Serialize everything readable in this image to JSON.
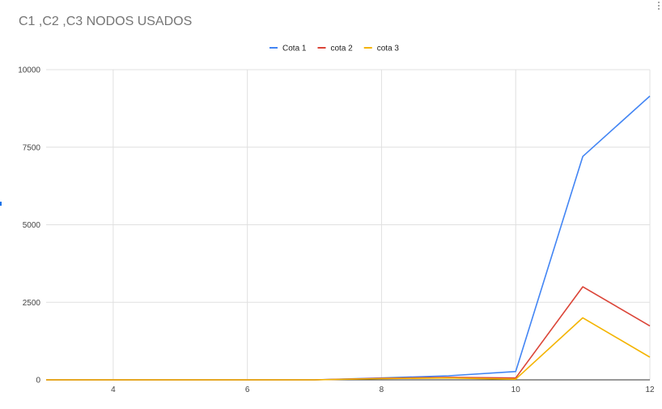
{
  "menu": {
    "icon": "more-vert-icon"
  },
  "chart_data": {
    "type": "line",
    "title": "C1 ,C2 ,C3 NODOS USADOS",
    "xlabel": "",
    "ylabel": "",
    "xlim": [
      3,
      12
    ],
    "ylim": [
      0,
      10000
    ],
    "x_ticks": [
      4,
      6,
      8,
      10,
      12
    ],
    "y_ticks": [
      0,
      2500,
      5000,
      7500,
      10000
    ],
    "grid": true,
    "legend_position": "top-center",
    "x": [
      3,
      4,
      5,
      6,
      7,
      8,
      9,
      10,
      11,
      12
    ],
    "series": [
      {
        "name": "Cota 1",
        "color": "#4285f4",
        "values": [
          0,
          0,
          0,
          0,
          0,
          60,
          130,
          270,
          7200,
          9150
        ]
      },
      {
        "name": "cota 2",
        "color": "#db4437",
        "values": [
          0,
          0,
          0,
          0,
          0,
          50,
          80,
          60,
          3000,
          1740
        ]
      },
      {
        "name": "cota 3",
        "color": "#f4b400",
        "values": [
          0,
          0,
          0,
          0,
          0,
          40,
          60,
          20,
          2000,
          730
        ]
      }
    ]
  }
}
